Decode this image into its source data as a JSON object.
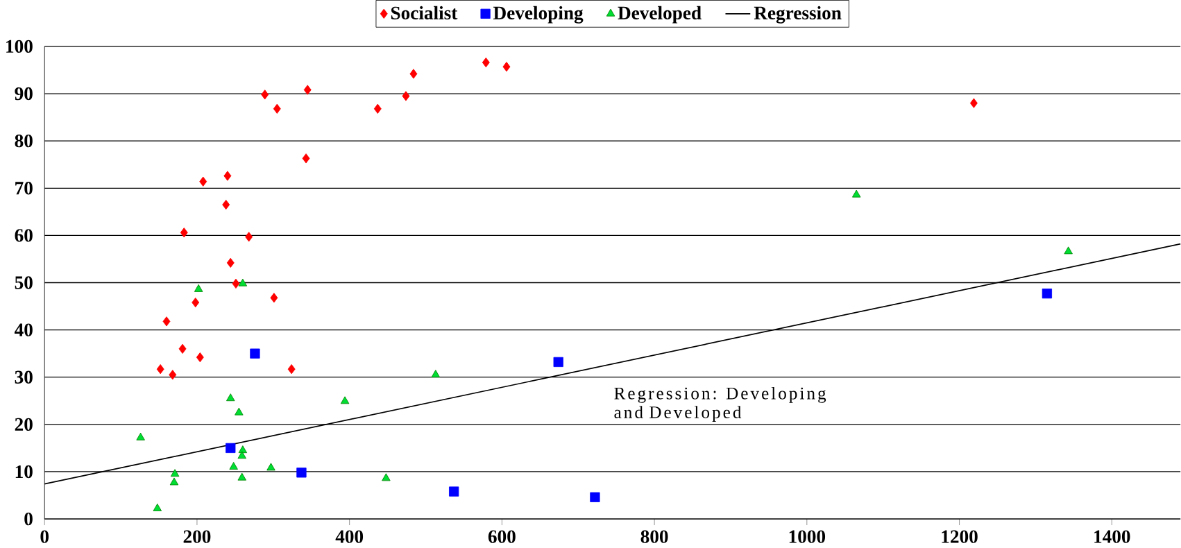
{
  "chart_data": {
    "type": "scatter",
    "xlim": [
      0,
      1490
    ],
    "ylim": [
      0,
      100
    ],
    "xticks": [
      0,
      200,
      400,
      600,
      800,
      1000,
      1200,
      1400
    ],
    "yticks": [
      0,
      10,
      20,
      30,
      40,
      50,
      60,
      70,
      80,
      90,
      100
    ],
    "grid": "y",
    "legend": "top",
    "annotations": [
      "Regression: Developing and Developed"
    ],
    "series": [
      {
        "name": "Socialist",
        "color": "#ff0000",
        "marker": "diamond",
        "x": [
          289,
          305,
          345,
          437,
          474,
          484,
          343,
          208,
          240,
          238,
          183,
          268,
          244,
          251,
          198,
          301,
          152,
          168,
          181,
          160,
          204,
          324,
          579,
          606,
          1219
        ],
        "values": [
          89.8,
          86.8,
          90.8,
          86.8,
          89.5,
          94.2,
          76.3,
          71.4,
          72.6,
          66.5,
          60.6,
          59.7,
          54.2,
          49.8,
          45.8,
          46.8,
          31.7,
          30.5,
          36,
          41.8,
          34.2,
          31.7,
          96.6,
          95.7,
          88
        ]
      },
      {
        "name": "Developing",
        "color": "#0000ff",
        "marker": "square",
        "x": [
          276,
          244,
          337,
          537,
          674,
          722,
          1315
        ],
        "values": [
          35,
          15,
          9.8,
          5.8,
          33.2,
          4.6,
          47.7
        ]
      },
      {
        "name": "Developed",
        "color": "#00dd33",
        "marker": "triangle",
        "x": [
          126,
          148,
          170,
          171,
          202,
          260,
          244,
          255,
          260,
          259,
          248,
          259,
          297,
          394,
          448,
          513,
          1065,
          1343
        ],
        "values": [
          17.2,
          2.2,
          7.7,
          9.5,
          48.6,
          49.8,
          25.5,
          22.5,
          14.5,
          13.3,
          11,
          8.7,
          10.8,
          24.9,
          8.6,
          30.5,
          68.6,
          56.6
        ]
      },
      {
        "name": "Regression",
        "type": "line",
        "color": "#000000",
        "marker": "none",
        "x": [
          0,
          1490
        ],
        "values": [
          7.4,
          58.2
        ]
      }
    ]
  }
}
